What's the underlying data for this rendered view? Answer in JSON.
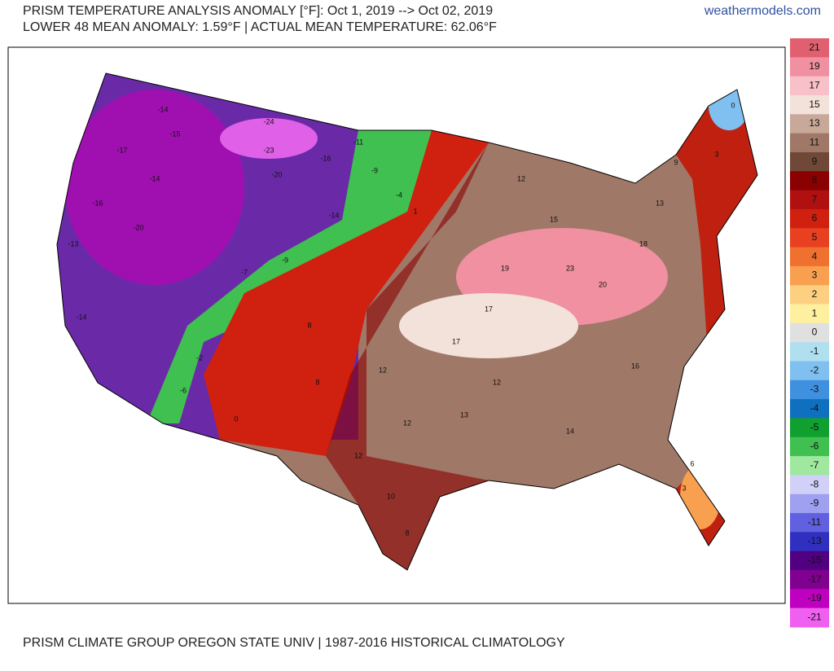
{
  "header": {
    "title": "PRISM TEMPERATURE ANALYSIS ANOMALY [°F]: Oct 1, 2019 --> Oct 02, 2019",
    "subtitle": "LOWER 48 MEAN ANOMALY: 1.59°F | ACTUAL MEAN TEMPERATURE: 62.06°F",
    "site": "weathermodels.com"
  },
  "footer": "PRISM CLIMATE GROUP OREGON STATE UNIV | 1987-2016 HISTORICAL CLIMATOLOGY",
  "legend": {
    "values": [
      21,
      19,
      17,
      15,
      13,
      11,
      9,
      8,
      7,
      6,
      5,
      4,
      3,
      2,
      1,
      0,
      -1,
      -2,
      -3,
      -4,
      -5,
      -6,
      -7,
      -8,
      -9,
      -11,
      -13,
      -15,
      -17,
      -19,
      -21
    ],
    "colors": [
      "#e06070",
      "#f090a0",
      "#f8c0c8",
      "#f2e2da",
      "#c8a898",
      "#a07868",
      "#704838",
      "#8b0000",
      "#b01010",
      "#d02010",
      "#e84020",
      "#f07030",
      "#f8a050",
      "#fcd080",
      "#fff0a0",
      "#e0e0e0",
      "#b0e0f0",
      "#80c0f0",
      "#4090e0",
      "#1070c0",
      "#10a030",
      "#40c050",
      "#a0e8a0",
      "#d0d0f8",
      "#a0a0f0",
      "#6060e0",
      "#3030c0",
      "#500080",
      "#800090",
      "#c000c0",
      "#f060f0"
    ]
  },
  "map_labels": [
    -14,
    -15,
    -17,
    -16,
    -13,
    -14,
    -20,
    -14,
    -24,
    -23,
    -20,
    -16,
    -11,
    -9,
    -14,
    -4,
    1,
    -9,
    -7,
    -2,
    -6,
    0,
    8,
    8,
    12,
    12,
    12,
    10,
    8,
    13,
    12,
    17,
    17,
    19,
    23,
    20,
    15,
    12,
    18,
    13,
    9,
    3,
    0,
    14,
    16,
    6,
    3
  ]
}
